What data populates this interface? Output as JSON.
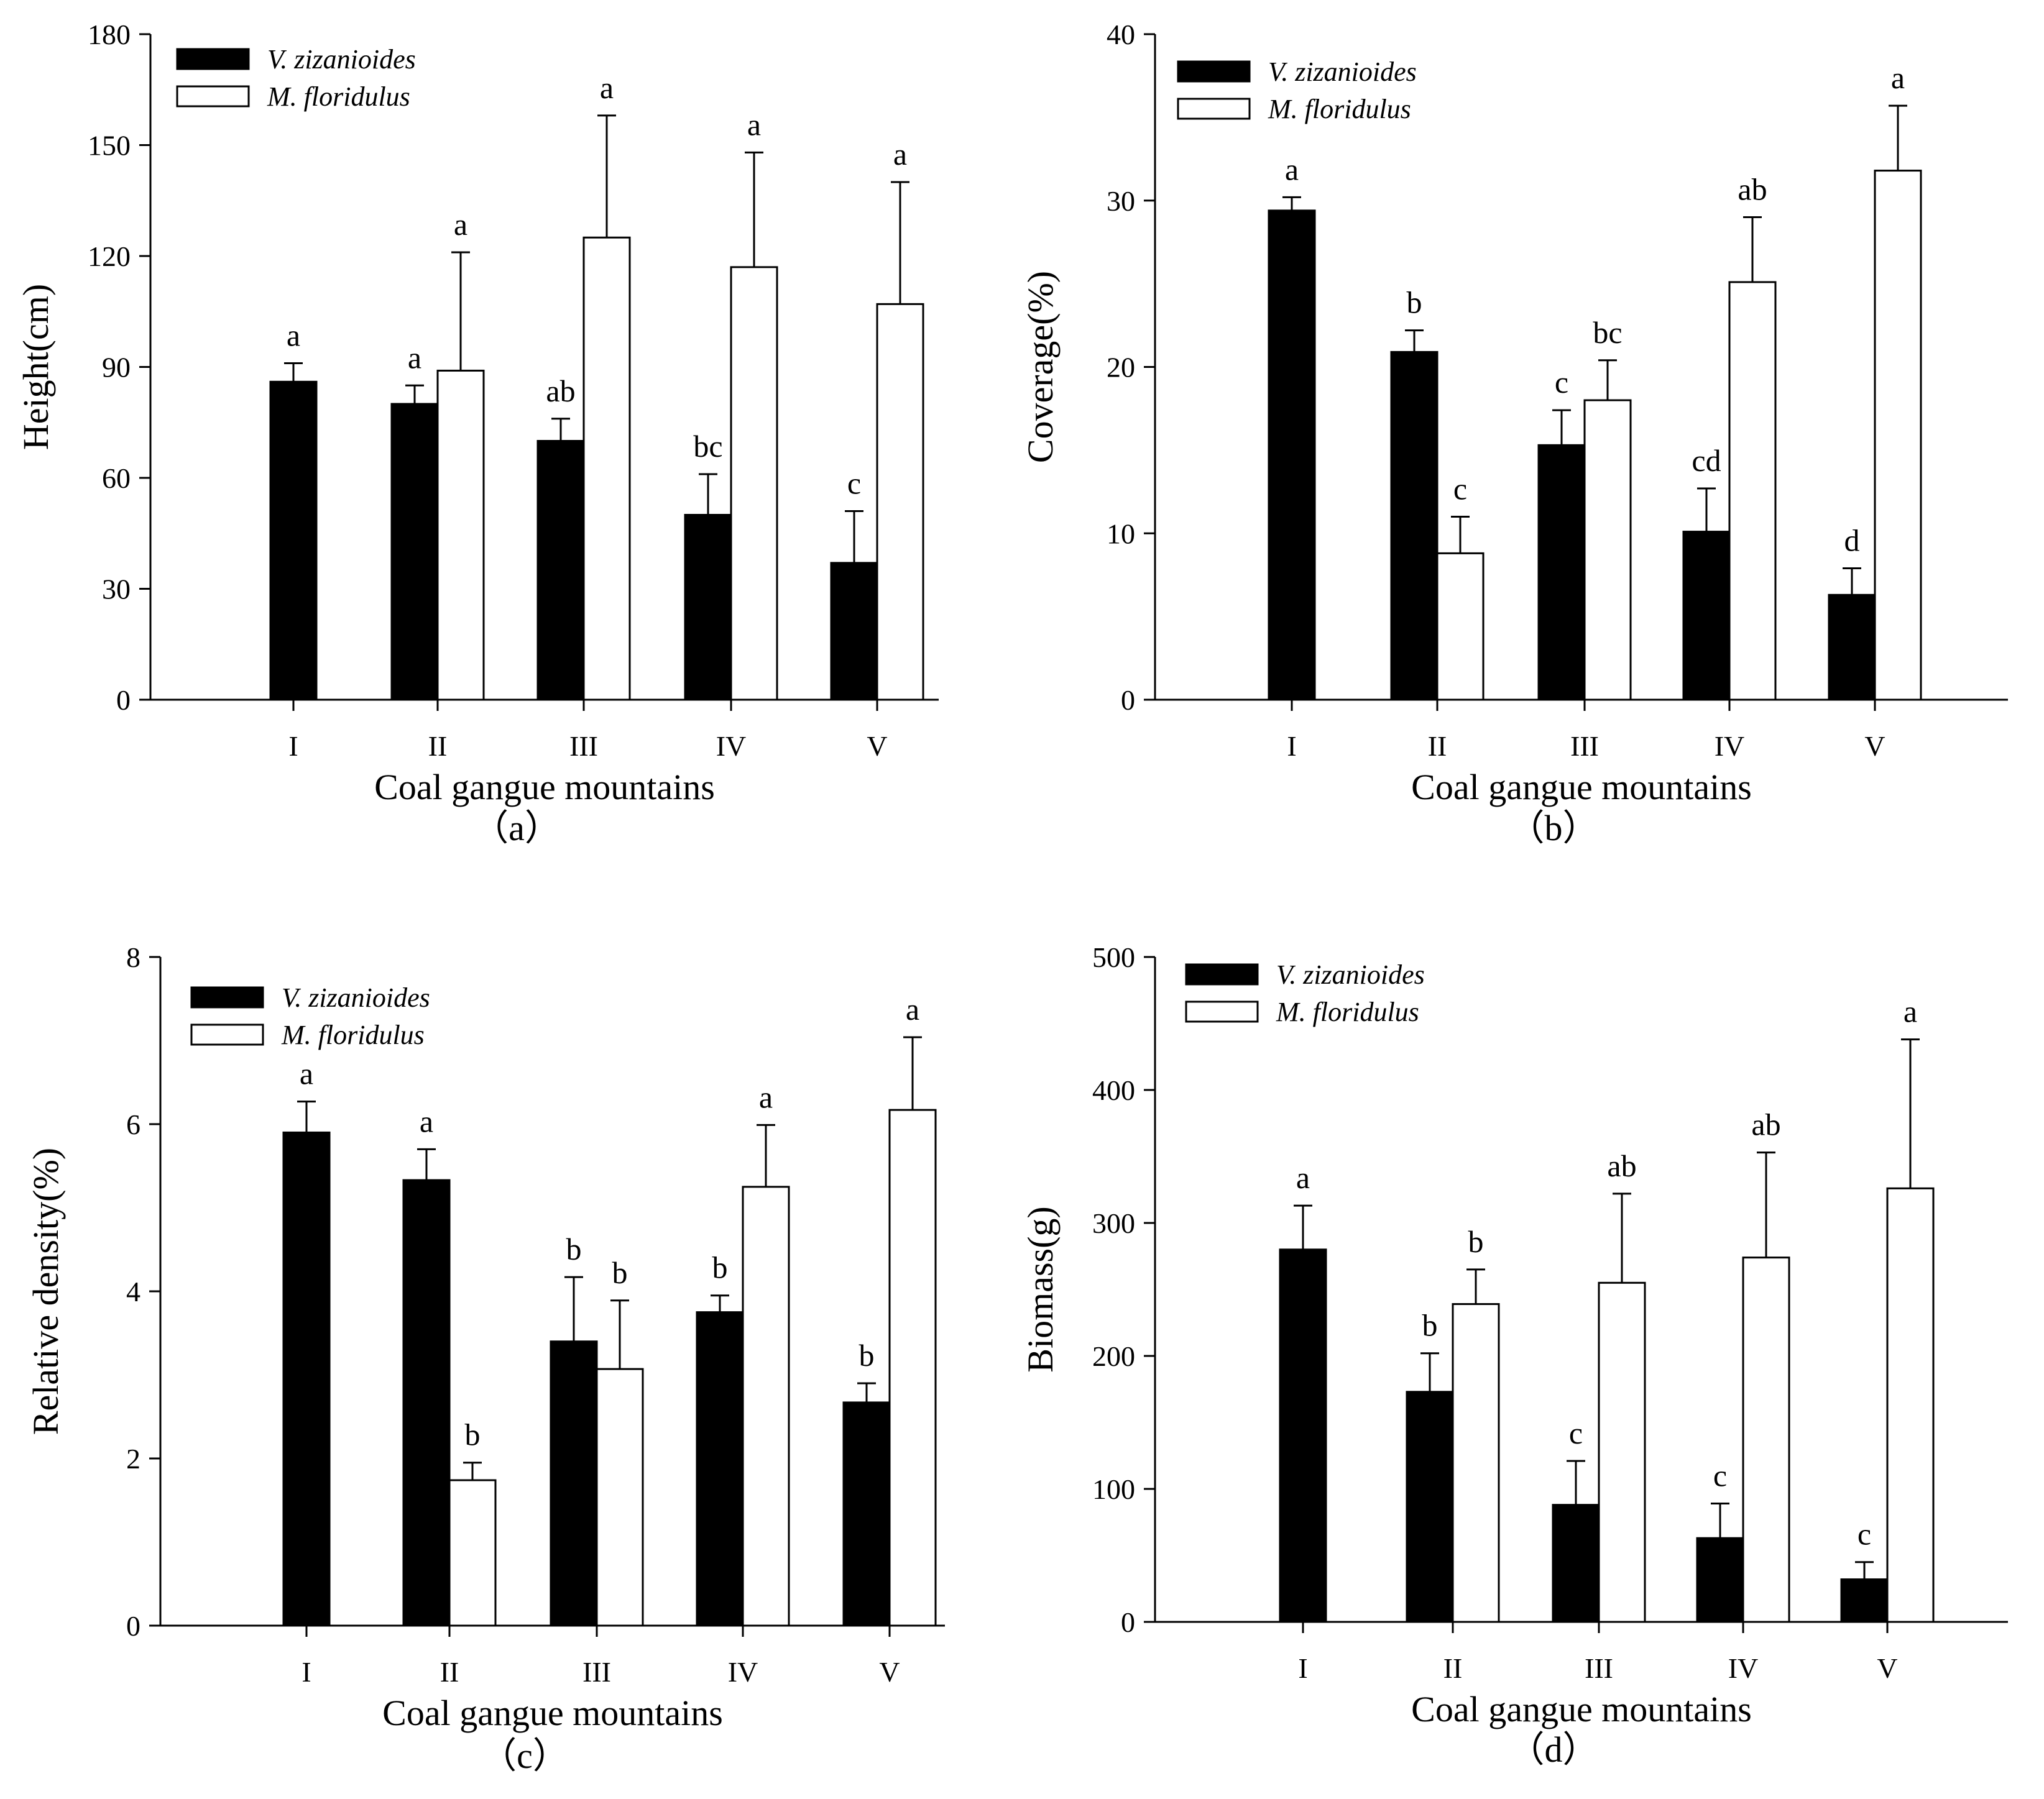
{
  "figure": {
    "bar_colors": {
      "series_1": "#000000",
      "series_2": "#ffffff"
    },
    "stroke_color": "#000000"
  },
  "chart_data": [
    {
      "id": "a",
      "type": "bar",
      "panel_label": "（a）",
      "xlabel": "Coal gangue mountains",
      "ylabel": "Height(cm)",
      "categories": [
        "I",
        "II",
        "III",
        "IV",
        "V"
      ],
      "ylim": [
        0,
        180
      ],
      "yticks": [
        0,
        30,
        60,
        90,
        120,
        150,
        180
      ],
      "legend_position": "top-left",
      "series": [
        {
          "name": "V. zizanioides",
          "values": [
            86,
            80,
            70,
            50,
            37
          ],
          "errors": [
            5,
            5,
            6,
            11,
            14
          ],
          "letters": [
            "a",
            "a",
            "ab",
            "bc",
            "c"
          ]
        },
        {
          "name": "M. floridulus",
          "values": [
            null,
            89,
            125,
            117,
            107
          ],
          "errors": [
            null,
            32,
            33,
            31,
            33
          ],
          "letters": [
            null,
            "a",
            "a",
            "a",
            "a"
          ]
        }
      ]
    },
    {
      "id": "b",
      "type": "bar",
      "panel_label": "（b）",
      "xlabel": "Coal gangue mountains",
      "ylabel": "Coverage(%)",
      "categories": [
        "I",
        "II",
        "III",
        "IV",
        "V"
      ],
      "ylim": [
        0,
        40
      ],
      "yticks": [
        0,
        10,
        20,
        30,
        40
      ],
      "legend_position": "top-left",
      "series": [
        {
          "name": "V. zizanioides",
          "values": [
            29.4,
            20.9,
            15.3,
            10.1,
            6.3
          ],
          "errors": [
            0.8,
            1.3,
            2.1,
            2.6,
            1.6
          ],
          "letters": [
            "a",
            "b",
            "c",
            "cd",
            "d"
          ]
        },
        {
          "name": "M. floridulus",
          "values": [
            null,
            8.8,
            18.0,
            25.1,
            31.8
          ],
          "errors": [
            null,
            2.2,
            2.4,
            3.9,
            3.9
          ],
          "letters": [
            null,
            "c",
            "bc",
            "ab",
            "a"
          ]
        }
      ]
    },
    {
      "id": "c",
      "type": "bar",
      "panel_label": "（c）",
      "xlabel": "Coal gangue mountains",
      "ylabel": "Relative density(%)",
      "categories": [
        "I",
        "II",
        "III",
        "IV",
        "V"
      ],
      "ylim": [
        0,
        8
      ],
      "yticks": [
        0,
        2,
        4,
        6,
        8
      ],
      "legend_position": "top-left",
      "series": [
        {
          "name": "V. zizanioides",
          "values": [
            5.9,
            5.33,
            3.4,
            3.75,
            2.67
          ],
          "errors": [
            0.37,
            0.37,
            0.77,
            0.2,
            0.23
          ],
          "letters": [
            "a",
            "a",
            "b",
            "b",
            "b"
          ]
        },
        {
          "name": "M. floridulus",
          "values": [
            null,
            1.74,
            3.07,
            5.25,
            6.17
          ],
          "errors": [
            null,
            0.21,
            0.82,
            0.74,
            0.87
          ],
          "letters": [
            null,
            "b",
            "b",
            "a",
            "a"
          ]
        }
      ]
    },
    {
      "id": "d",
      "type": "bar",
      "panel_label": "（d）",
      "xlabel": "Coal gangue mountains",
      "ylabel": "Biomass(g)",
      "categories": [
        "I",
        "II",
        "III",
        "IV",
        "V"
      ],
      "ylim": [
        0,
        500
      ],
      "yticks": [
        0,
        100,
        200,
        300,
        400,
        500
      ],
      "legend_position": "top-left",
      "series": [
        {
          "name": "V. zizanioides",
          "values": [
            280,
            173,
            88,
            63,
            32
          ],
          "errors": [
            33,
            29,
            33,
            26,
            13
          ],
          "letters": [
            "a",
            "b",
            "c",
            "c",
            "c"
          ]
        },
        {
          "name": "M. floridulus",
          "values": [
            null,
            239,
            255,
            274,
            326
          ],
          "errors": [
            null,
            26,
            67,
            79,
            112
          ],
          "letters": [
            null,
            "b",
            "ab",
            "ab",
            "a"
          ]
        }
      ]
    }
  ]
}
